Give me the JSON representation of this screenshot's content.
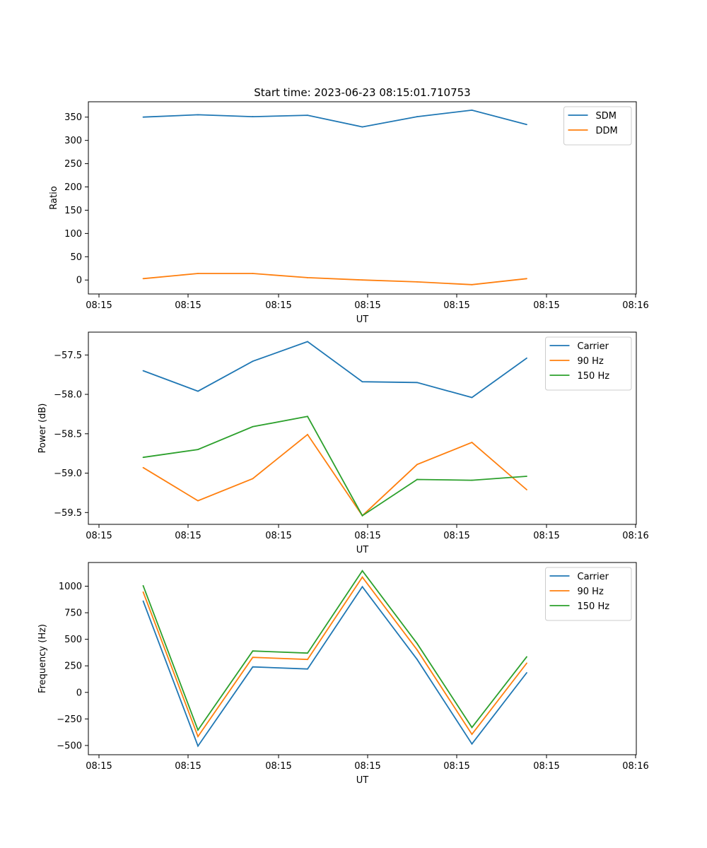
{
  "figure": {
    "title": "Start time: 2023-06-23 08:15:01.710753"
  },
  "chart_data": [
    {
      "type": "line",
      "title": "Start time: 2023-06-23 08:15:01.710753",
      "xlabel": "UT",
      "ylabel": "Ratio",
      "x": [
        1,
        2,
        3,
        4,
        5,
        6,
        7,
        8
      ],
      "x_tick_labels": [
        "08:15",
        "08:15",
        "08:15",
        "08:15",
        "08:15",
        "08:15",
        "08:15"
      ],
      "x_last_tick_label": "08:16",
      "xlim": [
        0,
        10
      ],
      "y_ticks": [
        0,
        50,
        100,
        150,
        200,
        250,
        300,
        350
      ],
      "y_tick_labels": [
        "0",
        "50",
        "100",
        "150",
        "200",
        "250",
        "300",
        "350"
      ],
      "ylim": [
        -30,
        383
      ],
      "legend": "top-right",
      "grid": false,
      "series": [
        {
          "name": "SDM",
          "color": "#1f77b4",
          "values": [
            350,
            355,
            351,
            354,
            329,
            351,
            365,
            334
          ]
        },
        {
          "name": "DDM",
          "color": "#ff7f0e",
          "values": [
            3,
            14,
            14,
            5,
            0,
            -4,
            -10,
            3
          ]
        }
      ]
    },
    {
      "type": "line",
      "xlabel": "UT",
      "ylabel": "Power (dB)",
      "x": [
        1,
        2,
        3,
        4,
        5,
        6,
        7,
        8
      ],
      "x_tick_labels": [
        "08:15",
        "08:15",
        "08:15",
        "08:15",
        "08:15",
        "08:15",
        "08:15"
      ],
      "x_last_tick_label": "08:16",
      "xlim": [
        0,
        10
      ],
      "y_ticks": [
        -59.5,
        -59.0,
        -58.5,
        -58.0,
        -57.5
      ],
      "y_tick_labels": [
        "−59.5",
        "−59.0",
        "−58.5",
        "−58.0",
        "−57.5"
      ],
      "ylim": [
        -59.65,
        -57.21
      ],
      "legend": "top-right",
      "grid": false,
      "series": [
        {
          "name": "Carrier",
          "color": "#1f77b4",
          "values": [
            -57.7,
            -57.96,
            -57.58,
            -57.33,
            -57.84,
            -57.85,
            -58.04,
            -57.54
          ]
        },
        {
          "name": "90 Hz",
          "color": "#ff7f0e",
          "values": [
            -58.93,
            -59.35,
            -59.07,
            -58.51,
            -59.54,
            -58.89,
            -58.61,
            -59.21
          ]
        },
        {
          "name": "150 Hz",
          "color": "#2ca02c",
          "values": [
            -58.8,
            -58.7,
            -58.41,
            -58.28,
            -59.54,
            -59.08,
            -59.09,
            -59.04
          ]
        }
      ]
    },
    {
      "type": "line",
      "xlabel": "UT",
      "ylabel": "Frequency (Hz)",
      "x": [
        1,
        2,
        3,
        4,
        5,
        6,
        7,
        8
      ],
      "x_tick_labels": [
        "08:15",
        "08:15",
        "08:15",
        "08:15",
        "08:15",
        "08:15",
        "08:15"
      ],
      "x_last_tick_label": "08:16",
      "xlim": [
        0,
        10
      ],
      "y_ticks": [
        -500,
        -250,
        0,
        250,
        500,
        750,
        1000
      ],
      "y_tick_labels": [
        "−500",
        "−250",
        "0",
        "250",
        "500",
        "750",
        "1000"
      ],
      "ylim": [
        -587,
        1223
      ],
      "legend": "top-right",
      "grid": false,
      "series": [
        {
          "name": "Carrier",
          "color": "#1f77b4",
          "values": [
            860,
            -505,
            240,
            220,
            995,
            310,
            -485,
            185
          ]
        },
        {
          "name": "90 Hz",
          "color": "#ff7f0e",
          "values": [
            945,
            -415,
            330,
            310,
            1085,
            400,
            -395,
            275
          ]
        },
        {
          "name": "150 Hz",
          "color": "#2ca02c",
          "values": [
            1005,
            -355,
            390,
            370,
            1145,
            460,
            -330,
            335
          ]
        }
      ]
    }
  ]
}
